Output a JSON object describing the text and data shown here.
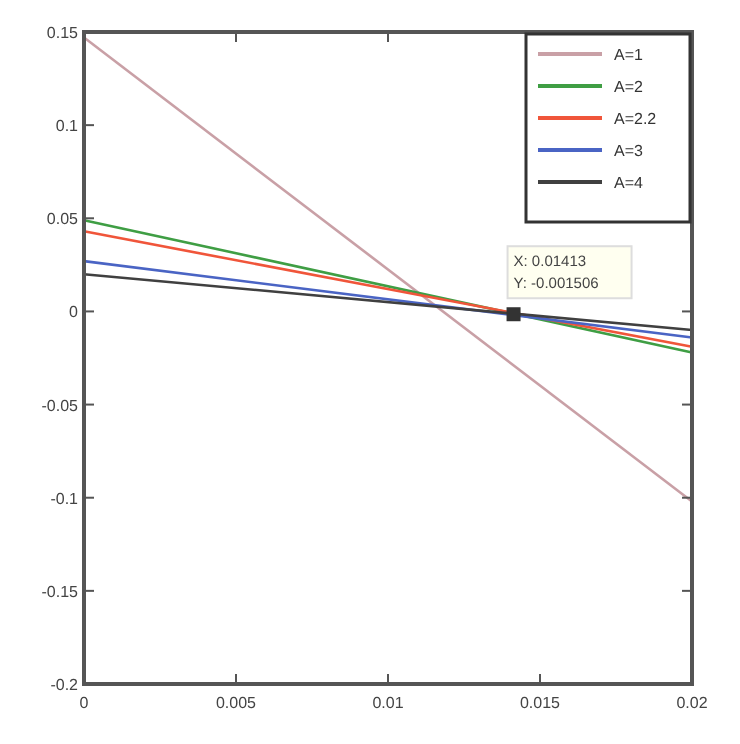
{
  "chart_data": {
    "type": "line",
    "x": [
      0,
      0.02
    ],
    "series": [
      {
        "name": "A=1",
        "color": "#c9a0a6",
        "values": [
          0.147,
          -0.102
        ]
      },
      {
        "name": "A=2",
        "color": "#3f9e44",
        "values": [
          0.049,
          -0.022
        ]
      },
      {
        "name": "A=2.2",
        "color": "#f0553a",
        "values": [
          0.043,
          -0.019
        ]
      },
      {
        "name": "A=3",
        "color": "#4a64c4",
        "values": [
          0.027,
          -0.014
        ]
      },
      {
        "name": "A=4",
        "color": "#404040",
        "values": [
          0.02,
          -0.01
        ]
      }
    ],
    "xlim": [
      0,
      0.02
    ],
    "xticks": [
      0,
      0.005,
      0.01,
      0.015,
      0.02
    ],
    "ylim": [
      -0.2,
      0.15
    ],
    "yticks": [
      -0.2,
      -0.15,
      -0.1,
      -0.05,
      0,
      0.05,
      0.1,
      0.15
    ],
    "annotations": [
      {
        "text": "X: 0.01413\nY: -0.001506",
        "x": 0.01413,
        "y": -0.001506
      }
    ],
    "legend": "top right",
    "grid": false,
    "marker": "none",
    "line_style": "solid"
  }
}
